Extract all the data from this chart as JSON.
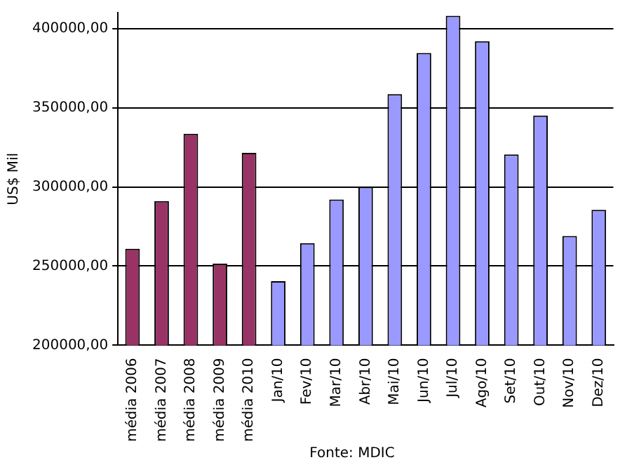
{
  "chart_data": {
    "type": "bar",
    "ylabel": "US$ Mil",
    "categories": [
      "média 2006",
      "média 2007",
      "média 2008",
      "média 2009",
      "média 2010",
      "Jan/10",
      "Fev/10",
      "Mar/10",
      "Abr/10",
      "Mai/10",
      "Jun/10",
      "Jul/10",
      "Ago/10",
      "Set/10",
      "Out/10",
      "Nov/10",
      "Dez/10"
    ],
    "values": [
      261000,
      291000,
      333500,
      251500,
      321500,
      240500,
      264500,
      292000,
      300000,
      358500,
      384500,
      408000,
      392000,
      320500,
      345000,
      269000,
      285500
    ],
    "colors": [
      "#993366",
      "#993366",
      "#993366",
      "#993366",
      "#993366",
      "#9999ff",
      "#9999ff",
      "#9999ff",
      "#9999ff",
      "#9999ff",
      "#9999ff",
      "#9999ff",
      "#9999ff",
      "#9999ff",
      "#9999ff",
      "#9999ff",
      "#9999ff"
    ],
    "ylim": [
      200000,
      410000
    ],
    "yticks": [
      {
        "value": 200000,
        "label": "200000,00"
      },
      {
        "value": 250000,
        "label": "250000,00"
      },
      {
        "value": 300000,
        "label": "300000,00"
      },
      {
        "value": 350000,
        "label": "350000,00"
      },
      {
        "value": 400000,
        "label": "400000,00"
      }
    ],
    "grid": "y",
    "legend": false,
    "annotations": [
      "Fonte: MDIC"
    ]
  }
}
